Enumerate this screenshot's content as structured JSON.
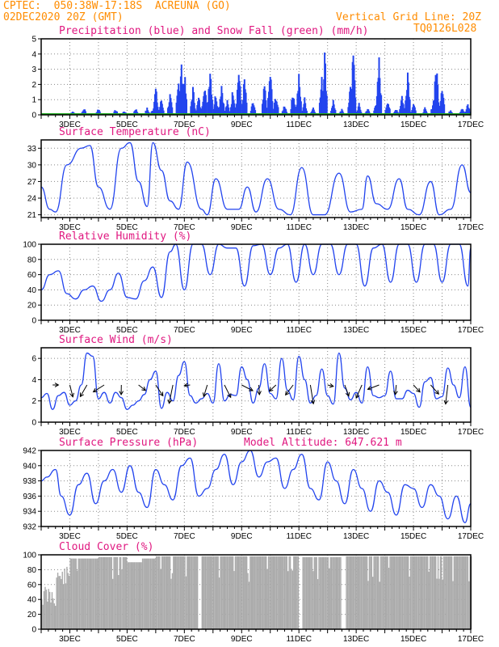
{
  "header": {
    "line1": "CPTEC:  050:38W-17:18S  ACREUNA (GO)",
    "line2": "02DEC2020 20Z (GMT)",
    "grid_note": "Vertical Grid Line: 20Z",
    "run_id": "TQ0126L028"
  },
  "colors": {
    "header": "#ff8c00",
    "title": "#e01880",
    "line": "#2244ee",
    "snow": "#22aa22",
    "cloud": "#aaaaaa",
    "arrow": "#000000"
  },
  "x_axis": {
    "start_day": 2,
    "end_day": 17,
    "tick_labels": [
      "3DEC",
      "5DEC",
      "7DEC",
      "9DEC",
      "11DEC",
      "13DEC",
      "15DEC",
      "17DEC"
    ]
  },
  "chart_data": [
    {
      "type": "bar",
      "title": "Precipitation (blue) and Snow Fall (green) (mm/h)",
      "ylim": [
        0,
        5
      ],
      "yticks": [
        "0",
        "1",
        "2",
        "3",
        "4",
        "5"
      ],
      "series": [
        {
          "name": "Precipitation",
          "color": "#2244ee",
          "peaks": [
            [
              3.1,
              0.3
            ],
            [
              3.5,
              0.5
            ],
            [
              4.0,
              0.5
            ],
            [
              4.6,
              0.4
            ],
            [
              4.9,
              0.3
            ],
            [
              5.3,
              0.5
            ],
            [
              5.7,
              0.5
            ],
            [
              5.9,
              0.4
            ],
            [
              6.0,
              2.0
            ],
            [
              6.2,
              1.2
            ],
            [
              6.5,
              1.5
            ],
            [
              6.8,
              2.5
            ],
            [
              6.9,
              3.7
            ],
            [
              7.0,
              3.2
            ],
            [
              7.3,
              2.0
            ],
            [
              7.5,
              1.3
            ],
            [
              7.7,
              2.5
            ],
            [
              7.9,
              3.8
            ],
            [
              8.1,
              1.7
            ],
            [
              8.3,
              2.4
            ],
            [
              8.5,
              1.0
            ],
            [
              8.7,
              2.0
            ],
            [
              8.9,
              3.5
            ],
            [
              9.1,
              2.7
            ],
            [
              9.4,
              1.0
            ],
            [
              9.8,
              2.2
            ],
            [
              10.0,
              3.3
            ],
            [
              10.2,
              1.5
            ],
            [
              10.5,
              0.8
            ],
            [
              10.8,
              1.8
            ],
            [
              11.0,
              2.8
            ],
            [
              11.2,
              1.2
            ],
            [
              11.5,
              0.6
            ],
            [
              11.8,
              2.6
            ],
            [
              11.9,
              4.6
            ],
            [
              12.2,
              1.1
            ],
            [
              12.5,
              0.4
            ],
            [
              12.8,
              2.2
            ],
            [
              12.9,
              4.6
            ],
            [
              13.1,
              0.8
            ],
            [
              13.4,
              0.5
            ],
            [
              13.7,
              1.0
            ],
            [
              13.8,
              4.0
            ],
            [
              14.1,
              1.2
            ],
            [
              14.4,
              0.5
            ],
            [
              14.6,
              1.5
            ],
            [
              14.8,
              3.5
            ],
            [
              15.0,
              0.9
            ],
            [
              15.4,
              0.5
            ],
            [
              15.7,
              1.1
            ],
            [
              15.8,
              4.0
            ],
            [
              16.0,
              2.5
            ],
            [
              16.3,
              0.4
            ],
            [
              16.7,
              0.6
            ],
            [
              16.9,
              0.8
            ]
          ]
        },
        {
          "name": "Snow Fall",
          "color": "#22aa22",
          "values": [
            0
          ]
        }
      ]
    },
    {
      "type": "line",
      "title": "Surface Temperature (nC)",
      "ylim": [
        20.5,
        34.5
      ],
      "yticks": [
        "21",
        "24",
        "27",
        "30",
        "33"
      ],
      "series": [
        {
          "name": "Temperature",
          "x": [
            2.0,
            2.3,
            2.5,
            2.9,
            3.4,
            3.7,
            4.0,
            4.4,
            4.8,
            5.1,
            5.4,
            5.7,
            5.9,
            6.2,
            6.5,
            6.8,
            7.1,
            7.6,
            7.8,
            8.1,
            8.5,
            8.9,
            9.2,
            9.5,
            9.9,
            10.3,
            10.7,
            11.1,
            11.5,
            11.9,
            12.4,
            12.8,
            13.2,
            13.4,
            13.7,
            14.1,
            14.5,
            14.8,
            15.2,
            15.6,
            15.9,
            16.3,
            16.7,
            17.0
          ],
          "y": [
            26,
            22,
            21.5,
            30,
            33,
            33.5,
            26,
            22,
            33,
            34,
            27,
            22.5,
            34,
            29,
            23.5,
            22,
            30.5,
            22,
            21,
            27.5,
            22,
            22,
            26,
            21.5,
            27.5,
            22,
            21,
            29.5,
            21,
            21,
            28.5,
            21.5,
            22,
            28,
            23,
            22,
            27.5,
            22,
            21,
            27,
            21,
            22,
            30,
            25
          ]
        }
      ]
    },
    {
      "type": "line",
      "title": "Relative Humidity (%)",
      "ylim": [
        0,
        100
      ],
      "yticks": [
        "0",
        "20",
        "40",
        "60",
        "80",
        "100"
      ],
      "series": [
        {
          "name": "Relative Humidity",
          "x": [
            2.0,
            2.3,
            2.6,
            2.9,
            3.2,
            3.5,
            3.8,
            4.1,
            4.4,
            4.7,
            5.0,
            5.3,
            5.6,
            5.9,
            6.2,
            6.5,
            6.7,
            7.0,
            7.3,
            7.6,
            7.9,
            8.2,
            8.5,
            8.8,
            9.1,
            9.4,
            9.7,
            10.0,
            10.3,
            10.6,
            10.9,
            11.2,
            11.5,
            11.8,
            12.1,
            12.4,
            12.7,
            13.0,
            13.3,
            13.6,
            13.9,
            14.2,
            14.5,
            14.8,
            15.1,
            15.4,
            15.7,
            16.0,
            16.3,
            16.6,
            16.9,
            17.0
          ],
          "y": [
            40,
            60,
            65,
            35,
            28,
            40,
            45,
            25,
            40,
            62,
            30,
            28,
            52,
            70,
            30,
            90,
            100,
            40,
            100,
            100,
            60,
            100,
            95,
            95,
            45,
            98,
            100,
            60,
            95,
            100,
            50,
            100,
            60,
            100,
            100,
            60,
            100,
            100,
            45,
            95,
            100,
            50,
            100,
            100,
            50,
            100,
            100,
            50,
            100,
            100,
            45,
            95
          ]
        }
      ]
    },
    {
      "type": "line",
      "title": "Surface Wind (m/s)",
      "ylim": [
        0,
        7
      ],
      "yticks": [
        "0",
        "2",
        "4",
        "6"
      ],
      "series": [
        {
          "name": "Wind Speed",
          "x": [
            2.0,
            2.2,
            2.4,
            2.6,
            2.8,
            3.0,
            3.2,
            3.4,
            3.6,
            3.8,
            4.0,
            4.2,
            4.4,
            4.6,
            4.8,
            5.0,
            5.2,
            5.4,
            5.6,
            5.8,
            6.0,
            6.2,
            6.4,
            6.6,
            6.8,
            7.0,
            7.2,
            7.4,
            7.6,
            7.8,
            8.0,
            8.2,
            8.4,
            8.6,
            8.8,
            9.0,
            9.2,
            9.4,
            9.6,
            9.8,
            10.0,
            10.2,
            10.4,
            10.6,
            10.8,
            11.0,
            11.2,
            11.4,
            11.6,
            11.8,
            12.0,
            12.2,
            12.4,
            12.6,
            12.8,
            13.0,
            13.2,
            13.4,
            13.6,
            13.8,
            14.0,
            14.2,
            14.4,
            14.6,
            14.8,
            15.0,
            15.2,
            15.4,
            15.6,
            15.8,
            16.0,
            16.2,
            16.4,
            16.6,
            16.8,
            17.0
          ],
          "y": [
            2.3,
            2.7,
            1.2,
            2.5,
            2.8,
            1.6,
            2.0,
            3.5,
            6.5,
            6.2,
            2.2,
            2.8,
            1.8,
            2.8,
            2.3,
            1.2,
            1.6,
            2.0,
            2.6,
            4.0,
            4.8,
            1.3,
            2.8,
            2.0,
            4.4,
            5.7,
            2.5,
            1.8,
            2.2,
            2.7,
            1.8,
            5.5,
            2.0,
            2.6,
            2.5,
            5.2,
            4.0,
            1.8,
            3.2,
            5.5,
            2.7,
            2.2,
            6.0,
            3.0,
            2.1,
            6.2,
            4.0,
            1.8,
            2.5,
            5.0,
            2.5,
            1.7,
            6.5,
            3.2,
            2.1,
            2.8,
            1.8,
            5.2,
            2.5,
            2.3,
            2.5,
            4.8,
            2.2,
            2.2,
            3.0,
            2.7,
            1.4,
            3.8,
            4.2,
            2.2,
            2.4,
            5.1,
            3.5,
            2.3,
            5.2,
            1.4
          ]
        }
      ],
      "arrows_shown": 24
    },
    {
      "type": "line",
      "title": "Surface Pressure (hPa)",
      "annotation": "Model Altitude: 647.621 m",
      "ylim": [
        932,
        942
      ],
      "yticks": [
        "932",
        "934",
        "936",
        "938",
        "940",
        "942"
      ],
      "series": [
        {
          "name": "Pressure",
          "x": [
            2.0,
            2.2,
            2.5,
            2.7,
            3.0,
            3.3,
            3.6,
            3.9,
            4.2,
            4.5,
            4.8,
            5.1,
            5.4,
            5.7,
            6.0,
            6.3,
            6.6,
            6.9,
            7.2,
            7.5,
            7.8,
            8.1,
            8.4,
            8.7,
            9.0,
            9.3,
            9.6,
            9.9,
            10.2,
            10.5,
            10.8,
            11.1,
            11.4,
            11.7,
            12.0,
            12.3,
            12.6,
            12.9,
            13.2,
            13.5,
            13.8,
            14.1,
            14.4,
            14.7,
            15.0,
            15.3,
            15.6,
            15.9,
            16.2,
            16.5,
            16.8,
            17.0
          ],
          "y": [
            938,
            938.5,
            939.5,
            936,
            933.5,
            937.5,
            939,
            935,
            938,
            939.5,
            936.5,
            940,
            936.5,
            934.5,
            939.5,
            937.5,
            935.5,
            940,
            941,
            936,
            937,
            939.5,
            941.5,
            937.5,
            940.5,
            942,
            938.5,
            940.5,
            941,
            937,
            939.5,
            941.5,
            937,
            935.5,
            940.5,
            938,
            935,
            939.5,
            937,
            934,
            938,
            936.5,
            933.5,
            937.5,
            937,
            934.5,
            937.5,
            936,
            933,
            936,
            932.5,
            935
          ]
        }
      ]
    },
    {
      "type": "bar",
      "title": "Cloud Cover (%)",
      "ylim": [
        0,
        100
      ],
      "yticks": [
        "0",
        "20",
        "40",
        "60",
        "80",
        "100"
      ],
      "series": [
        {
          "name": "Cloud Cover",
          "color": "#aaaaaa",
          "breaks": [
            [
              2.0,
              60
            ],
            [
              2.5,
              85
            ],
            [
              3.0,
              95
            ],
            [
              4.0,
              97
            ],
            [
              5.0,
              90
            ],
            [
              5.5,
              95
            ],
            [
              6.0,
              98
            ],
            [
              7.5,
              0
            ],
            [
              7.6,
              98
            ],
            [
              11.0,
              0
            ],
            [
              11.1,
              97
            ],
            [
              12.5,
              0
            ],
            [
              12.6,
              98
            ],
            [
              17.0,
              96
            ]
          ]
        }
      ]
    }
  ]
}
